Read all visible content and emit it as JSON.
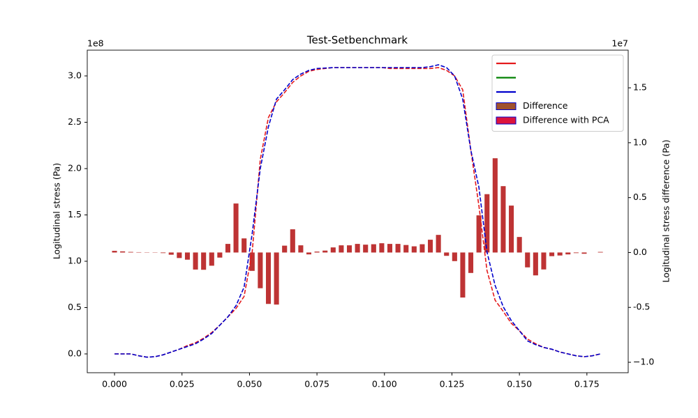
{
  "chart_data": {
    "type": "combo",
    "title": "Test-Setbenchmark",
    "ylabel": "Logitudinal stress (Pa)",
    "y2label": "Logitudinal stress difference (Pa)",
    "y_offset_label": "1e8",
    "y2_offset_label": "1e7",
    "legend": "upper right",
    "x": [
      0,
      0.003,
      0.006,
      0.009,
      0.012,
      0.015,
      0.018,
      0.021,
      0.024,
      0.027,
      0.03,
      0.033,
      0.036,
      0.039,
      0.042,
      0.045,
      0.048,
      0.051,
      0.054,
      0.057,
      0.06,
      0.063,
      0.066,
      0.069,
      0.072,
      0.075,
      0.078,
      0.081,
      0.084,
      0.087,
      0.09,
      0.093,
      0.096,
      0.099,
      0.102,
      0.105,
      0.108,
      0.111,
      0.114,
      0.117,
      0.12,
      0.123,
      0.126,
      0.129,
      0.132,
      0.135,
      0.138,
      0.141,
      0.144,
      0.147,
      0.15,
      0.153,
      0.156,
      0.159,
      0.162,
      0.165,
      0.168,
      0.171,
      0.174,
      0.177,
      0.18
    ],
    "xlim": [
      -0.0101,
      0.1903
    ],
    "xticks": [
      {
        "value": 0,
        "label": "0.000"
      },
      0.025,
      {
        "value": 0.05,
        "label": "0.050"
      },
      0.075,
      {
        "value": 0.1,
        "label": "0.100"
      },
      0.125,
      {
        "value": 0.15,
        "label": "0.150"
      },
      0.175
    ],
    "ylim": [
      -0.203,
      3.278
    ],
    "yticks": [
      {
        "value": 0,
        "label": "0.0"
      },
      0.5,
      {
        "value": 1,
        "label": "1.0"
      },
      1.5,
      {
        "value": 2,
        "label": "2.0"
      },
      2.5,
      {
        "value": 3,
        "label": "3.0"
      }
    ],
    "y2lim": [
      -1.095,
      1.843
    ],
    "y2ticks": [
      {
        "value": -1,
        "label": "−1.0"
      },
      -0.5,
      {
        "value": 0,
        "label": "0.0"
      },
      0.5,
      {
        "value": 1,
        "label": "1.0"
      },
      1.5
    ],
    "series": [
      {
        "type": "line",
        "color": "#e41a1c",
        "dashed": true,
        "values": [
          0,
          0,
          0,
          -0.02,
          -0.035,
          -0.03,
          -0.01,
          0.02,
          0.05,
          0.09,
          0.12,
          0.17,
          0.23,
          0.31,
          0.4,
          0.49,
          0.62,
          1.1,
          2.1,
          2.55,
          2.72,
          2.82,
          2.93,
          3.0,
          3.05,
          3.07,
          3.08,
          3.09,
          3.09,
          3.09,
          3.09,
          3.09,
          3.09,
          3.09,
          3.08,
          3.08,
          3.08,
          3.08,
          3.08,
          3.08,
          3.09,
          3.06,
          3.0,
          2.85,
          2.2,
          1.6,
          0.9,
          0.58,
          0.46,
          0.33,
          0.25,
          0.16,
          0.11,
          0.07,
          0.05,
          0.02,
          0,
          -0.02,
          -0.03,
          -0.02,
          0
        ]
      },
      {
        "type": "line",
        "color": "#008000",
        "dashed": false,
        "values": [
          null,
          null,
          null,
          null,
          null,
          null,
          null,
          null,
          null,
          null,
          null,
          null,
          null,
          null,
          null,
          null,
          null,
          null,
          null,
          null,
          null,
          null,
          null,
          null,
          null,
          null,
          null,
          null,
          null,
          null,
          null,
          null,
          null,
          null,
          null,
          null,
          null,
          null,
          null,
          null,
          null,
          null,
          null,
          null,
          null,
          null,
          null,
          null,
          null,
          null,
          null,
          null,
          null,
          null,
          null,
          null,
          null,
          null,
          null,
          null,
          null
        ]
      },
      {
        "type": "line",
        "color": "#0000cc",
        "dashed": true,
        "values": [
          0,
          0,
          0,
          -0.02,
          -0.035,
          -0.03,
          -0.01,
          0.02,
          0.05,
          0.08,
          0.11,
          0.16,
          0.22,
          0.31,
          0.4,
          0.52,
          0.72,
          1.3,
          2.0,
          2.45,
          2.75,
          2.85,
          2.96,
          3.02,
          3.06,
          3.08,
          3.085,
          3.09,
          3.09,
          3.09,
          3.09,
          3.09,
          3.09,
          3.09,
          3.09,
          3.09,
          3.09,
          3.09,
          3.09,
          3.1,
          3.12,
          3.09,
          3.0,
          2.75,
          2.2,
          1.8,
          1.1,
          0.74,
          0.51,
          0.36,
          0.25,
          0.14,
          0.1,
          0.07,
          0.05,
          0.02,
          0,
          -0.02,
          -0.03,
          -0.02,
          0
        ]
      },
      {
        "type": "bar",
        "axis": "y2",
        "name": "Difference",
        "color": "#a0522d",
        "edgecolor": "#0000cc",
        "values": [
          0.015,
          0.01,
          0.005,
          0.003,
          0.002,
          0.002,
          -0.005,
          -0.02,
          -0.05,
          -0.065,
          -0.155,
          -0.157,
          -0.12,
          -0.046,
          0.078,
          0.446,
          0.128,
          -0.167,
          -0.325,
          -0.468,
          -0.474,
          0.062,
          0.211,
          0.065,
          -0.017,
          0.008,
          0.017,
          0.046,
          0.065,
          0.065,
          0.078,
          0.071,
          0.075,
          0.084,
          0.078,
          0.078,
          0.068,
          0.056,
          0.075,
          0.116,
          0.16,
          -0.03,
          -0.078,
          -0.41,
          -0.186,
          0.338,
          0.531,
          0.858,
          0.604,
          0.427,
          0.141,
          -0.135,
          -0.208,
          -0.154,
          -0.033,
          -0.027,
          -0.017,
          -0.005,
          -0.011,
          0,
          0.005
        ]
      },
      {
        "type": "bar",
        "axis": "y2",
        "name": "Difference with PCA",
        "color": "#dc143c",
        "edgecolor": "#0000cc",
        "values": [
          0.015,
          0.01,
          0.005,
          0.003,
          0.002,
          0.002,
          -0.005,
          -0.02,
          -0.05,
          -0.065,
          -0.155,
          -0.157,
          -0.12,
          -0.046,
          0.078,
          0.446,
          0.128,
          -0.167,
          -0.325,
          -0.468,
          -0.474,
          0.062,
          0.211,
          0.065,
          -0.017,
          0.008,
          0.017,
          0.046,
          0.065,
          0.065,
          0.078,
          0.071,
          0.075,
          0.084,
          0.078,
          0.078,
          0.068,
          0.056,
          0.075,
          0.116,
          0.16,
          -0.03,
          -0.078,
          -0.41,
          -0.186,
          0.338,
          0.531,
          0.858,
          0.604,
          0.427,
          0.141,
          -0.135,
          -0.208,
          -0.154,
          -0.033,
          -0.027,
          -0.017,
          -0.005,
          -0.011,
          0,
          0.005
        ]
      }
    ]
  }
}
